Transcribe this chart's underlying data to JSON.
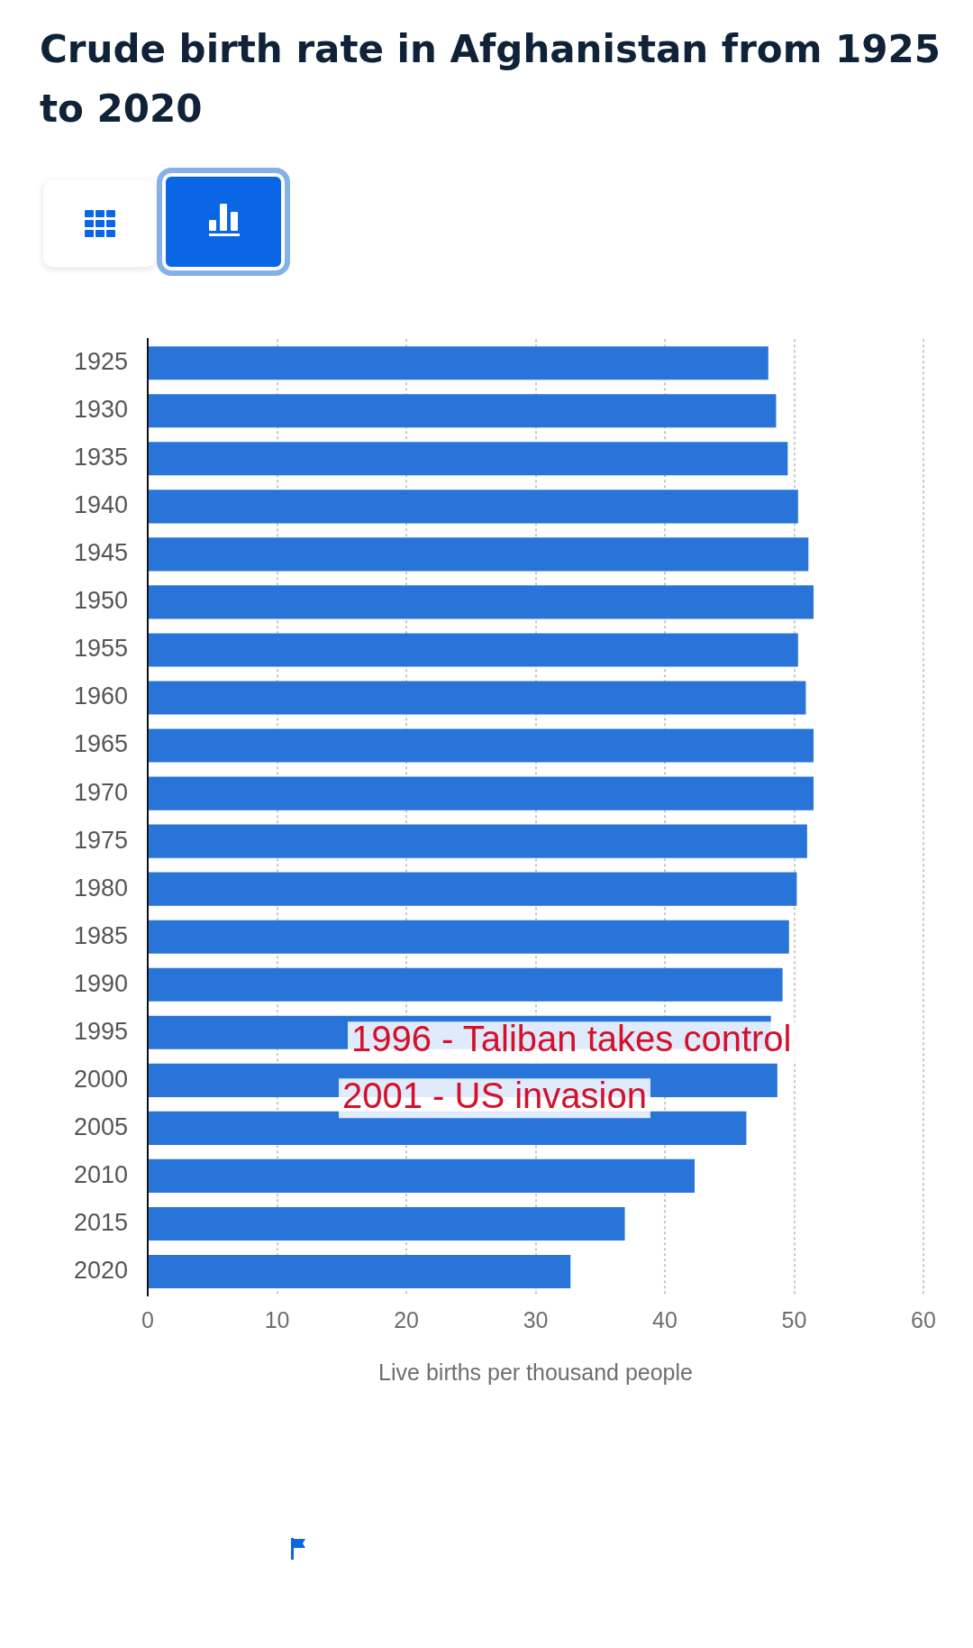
{
  "chart_data": {
    "type": "bar",
    "orientation": "horizontal",
    "title": "Crude birth rate in Afghanistan from 1925 to 2020",
    "categories": [
      "1925",
      "1930",
      "1935",
      "1940",
      "1945",
      "1950",
      "1955",
      "1960",
      "1965",
      "1970",
      "1975",
      "1980",
      "1985",
      "1990",
      "1995",
      "2000",
      "2005",
      "2010",
      "2015",
      "2020"
    ],
    "values": [
      48.0,
      48.6,
      49.5,
      50.3,
      51.1,
      51.5,
      50.3,
      50.9,
      51.5,
      51.5,
      51.0,
      50.2,
      49.6,
      49.1,
      48.2,
      48.7,
      46.3,
      42.3,
      36.9,
      32.7
    ],
    "color": "#2874d9",
    "xlim": [
      0,
      60
    ],
    "xticks": [
      0,
      10,
      20,
      30,
      40,
      50,
      60
    ],
    "xlabel": "Live births per thousand people",
    "grid": "x",
    "annotations": [
      "1996 - Taliban takes control",
      "2001 - US invasion"
    ]
  }
}
